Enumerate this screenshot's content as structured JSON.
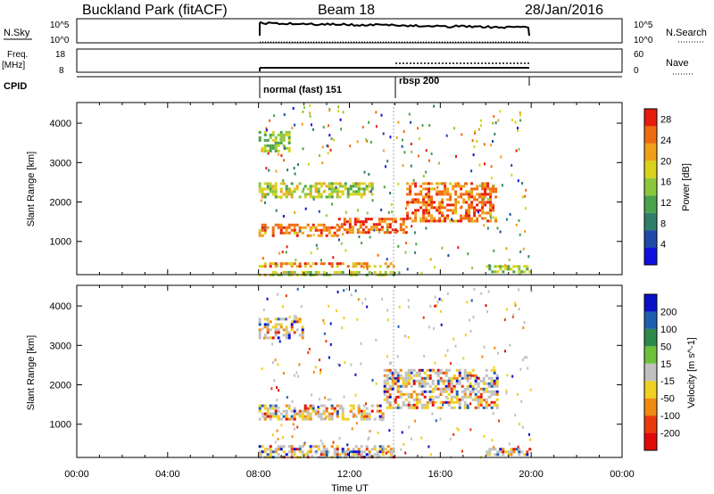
{
  "header": {
    "title": "Buckland Park (fitACF)",
    "beam": "Beam 18",
    "date": "28/Jan/2016"
  },
  "strips": {
    "nsky_label": "N.Sky",
    "nsky_left_ticks": [
      "10^5",
      "10^0"
    ],
    "nsky_right_ticks": [
      "10^5",
      "10^0"
    ],
    "nsearch_label": "N.Search",
    "freq_label": "Freq.",
    "freq_unit": "[MHz]",
    "freq_ticks": [
      "18",
      "8"
    ],
    "nave_label": "Nave",
    "nave_ticks": [
      "60",
      "0"
    ],
    "cpid_label": "CPID",
    "cpid_segments": [
      {
        "name": "normal (fast) 151",
        "start": "08:00",
        "end": "14:00"
      },
      {
        "name": "rbsp 200",
        "start": "14:00",
        "end": "20:00"
      }
    ]
  },
  "chart_data": [
    {
      "type": "heatmap",
      "panel": "power",
      "ylabel": "Slant Range [km]",
      "yticks": [
        1000,
        2000,
        3000,
        4000
      ],
      "ylim": [
        180,
        4500
      ],
      "xlim": [
        "00:00",
        "24:00"
      ],
      "data_extent": [
        "08:00",
        "20:00"
      ],
      "colorbar_label": "Power [dB]",
      "colorbar_ticks": [
        4,
        8,
        12,
        16,
        20,
        24,
        28
      ],
      "colorbar_range": [
        0,
        30
      ],
      "colors": [
        "#1010e0",
        "#1f4aa8",
        "#2f7f6a",
        "#4aa24a",
        "#8cc83c",
        "#d8d21e",
        "#f0a018",
        "#f06a10",
        "#e81c0c"
      ],
      "features": [
        {
          "time_start": 8.0,
          "time_end": 14.0,
          "range_start": 180,
          "range_end": 250,
          "level": 0.55
        },
        {
          "time_start": 8.0,
          "time_end": 14.0,
          "range_start": 390,
          "range_end": 470,
          "level": 0.8
        },
        {
          "time_start": 8.0,
          "time_end": 9.3,
          "range_start": 3300,
          "range_end": 3800,
          "level": 0.5
        },
        {
          "time_start": 8.0,
          "time_end": 13.0,
          "range_start": 2150,
          "range_end": 2500,
          "level": 0.55
        },
        {
          "time_start": 8.0,
          "time_end": 11.5,
          "range_start": 1150,
          "range_end": 1450,
          "level": 0.85
        },
        {
          "time_start": 11.5,
          "time_end": 14.5,
          "range_start": 1250,
          "range_end": 1600,
          "level": 0.9
        },
        {
          "time_start": 14.5,
          "time_end": 18.5,
          "range_start": 1500,
          "range_end": 2500,
          "level": 0.85
        },
        {
          "time_start": 18.0,
          "time_end": 20.0,
          "range_start": 200,
          "range_end": 400,
          "level": 0.5
        }
      ]
    },
    {
      "type": "heatmap",
      "panel": "velocity",
      "ylabel": "Slant Range [km]",
      "xlabel": "Time UT",
      "xticks": [
        "00:00",
        "04:00",
        "08:00",
        "12:00",
        "16:00",
        "20:00",
        "00:00"
      ],
      "yticks": [
        1000,
        2000,
        3000,
        4000
      ],
      "ylim": [
        180,
        4500
      ],
      "xlim": [
        "00:00",
        "24:00"
      ],
      "data_extent": [
        "08:00",
        "20:00"
      ],
      "colorbar_label": "Velocity [m s^-1]",
      "colorbar_ticks": [
        200,
        100,
        50,
        15,
        -15,
        -50,
        -100,
        -200
      ],
      "colors": [
        "#0a10c8",
        "#1e5fb0",
        "#2e8a4a",
        "#6dc23a",
        "#c0c0c0",
        "#f0d020",
        "#f08a10",
        "#ea3a0a",
        "#e00a0a"
      ],
      "features": [
        {
          "time_start": 8.0,
          "time_end": 14.0,
          "range_start": 180,
          "range_end": 470,
          "level": 0.5
        },
        {
          "time_start": 8.0,
          "time_end": 13.5,
          "range_start": 1100,
          "range_end": 1500,
          "level": 0.5
        },
        {
          "time_start": 13.5,
          "time_end": 18.5,
          "range_start": 1400,
          "range_end": 2400,
          "level": 0.5
        },
        {
          "time_start": 8.0,
          "time_end": 10.0,
          "range_start": 3200,
          "range_end": 3700,
          "level": 0.5
        },
        {
          "time_start": 18.0,
          "time_end": 20.0,
          "range_start": 200,
          "range_end": 400,
          "level": 0.5
        }
      ]
    }
  ]
}
